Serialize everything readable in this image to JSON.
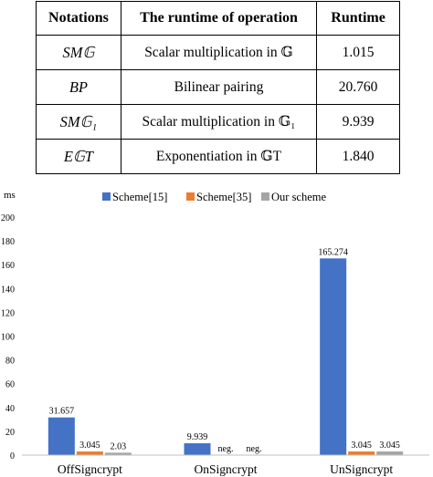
{
  "table": {
    "headers": [
      "Notations",
      "The runtime of operation",
      "Runtime"
    ],
    "rows": [
      {
        "notation": "SM𝔾",
        "operation": "Scalar multiplication in 𝔾",
        "runtime": "1.015"
      },
      {
        "notation": "BP",
        "operation": "Bilinear pairing",
        "runtime": "20.760"
      },
      {
        "notation": "SM𝔾₁",
        "operation": "Scalar multiplication in 𝔾₁",
        "runtime": "9.939"
      },
      {
        "notation": "E𝔾T",
        "operation": "Exponentiation in 𝔾T",
        "runtime": "1.840"
      }
    ]
  },
  "chart_data": {
    "type": "bar",
    "ylabel": "ms",
    "ylim": [
      0,
      200
    ],
    "yticks": [
      0,
      20,
      40,
      60,
      80,
      100,
      120,
      140,
      160,
      180,
      200
    ],
    "categories": [
      "OffSigncrypt",
      "OnSigncrypt",
      "UnSigncrypt"
    ],
    "legend_position": "top-center",
    "series": [
      {
        "name": "Scheme[15]",
        "color": "#4472C4",
        "values": [
          31.657,
          9.939,
          165.274
        ],
        "labels": [
          "31.657",
          "9.939",
          "165.274"
        ]
      },
      {
        "name": "Scheme[35]",
        "color": "#ED7D31",
        "values": [
          3.045,
          0,
          3.045
        ],
        "labels": [
          "3.045",
          "neg.",
          "3.045"
        ]
      },
      {
        "name": "Our scheme",
        "color": "#A5A5A5",
        "values": [
          2.03,
          0,
          3.045
        ],
        "labels": [
          "2.03",
          "neg.",
          "3.045"
        ]
      }
    ]
  }
}
